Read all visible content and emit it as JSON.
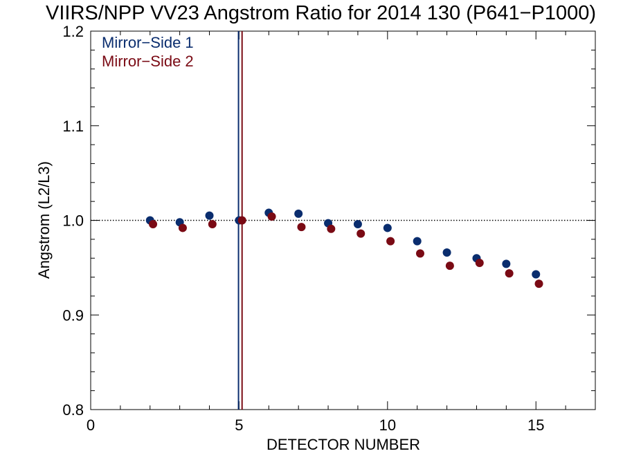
{
  "chart_data": {
    "type": "scatter",
    "title": "VIIRS/NPP VV23 Angstrom Ratio for 2014 130 (P641−P1000)",
    "xlabel": "DETECTOR NUMBER",
    "ylabel": "Angstrom (L2/L3)",
    "xlim": [
      0,
      17
    ],
    "ylim": [
      0.8,
      1.2
    ],
    "x_ticks": [
      0,
      5,
      10,
      15
    ],
    "x_tick_labels": [
      "0",
      "5",
      "10",
      "15"
    ],
    "y_ticks": [
      0.8,
      0.9,
      1.0,
      1.1,
      1.2
    ],
    "y_tick_labels": [
      "0.8",
      "0.9",
      "1.0",
      "1.1",
      "1.2"
    ],
    "grid": false,
    "legend_position": "top-left",
    "reference_line": {
      "y": 1.0,
      "style": "dotted"
    },
    "vertical_markers": [
      {
        "x": 4.98,
        "color": "#0a2d6e"
      },
      {
        "x": 5.1,
        "color": "#7a0a14"
      }
    ],
    "series": [
      {
        "name": "Mirror−Side 1",
        "color": "#0a2d6e",
        "x": [
          2,
          3,
          4,
          5,
          6,
          7,
          8,
          9,
          10,
          11,
          12,
          13,
          14,
          15
        ],
        "y": [
          1.0,
          0.998,
          1.005,
          1.0,
          1.008,
          1.007,
          0.997,
          0.996,
          0.992,
          0.978,
          0.966,
          0.96,
          0.954,
          0.943
        ]
      },
      {
        "name": "Mirror−Side 2",
        "color": "#7a0a14",
        "x": [
          2.1,
          3.1,
          4.1,
          5.1,
          6.1,
          7.1,
          8.1,
          9.1,
          10.1,
          11.1,
          12.1,
          13.1,
          14.1,
          15.1
        ],
        "y": [
          0.996,
          0.992,
          0.996,
          1.0,
          1.004,
          0.993,
          0.991,
          0.986,
          0.978,
          0.965,
          0.952,
          0.955,
          0.944,
          0.933
        ]
      }
    ]
  }
}
